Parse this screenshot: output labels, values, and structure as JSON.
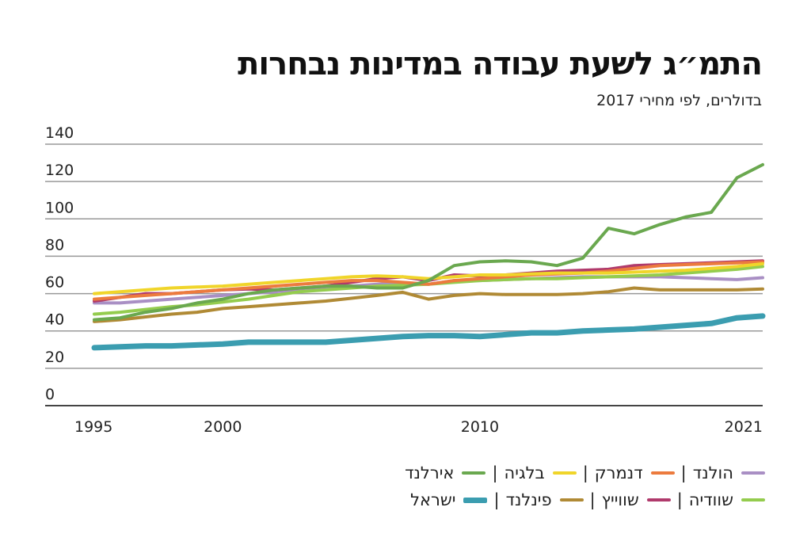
{
  "title": "התמ״ג לשעת עבודה במדינות נבחרות",
  "subtitle": "בדולרים, לפי מחירי 2017",
  "chart_data": {
    "type": "line",
    "title": "התמ״ג לשעת עבודה במדינות נבחרות",
    "subtitle": "בדולרים, לפי מחירי 2017",
    "xlabel": "",
    "ylabel": "",
    "ylim": [
      0,
      140
    ],
    "yticks": [
      0,
      20,
      40,
      60,
      80,
      100,
      120,
      140
    ],
    "xlim": [
      1995,
      2021
    ],
    "xticks": [
      1995,
      2000,
      2010,
      2021
    ],
    "grid": true,
    "legend": "bottom",
    "x": [
      1995,
      1996,
      1997,
      1998,
      1999,
      2000,
      2001,
      2002,
      2003,
      2004,
      2005,
      2006,
      2007,
      2008,
      2009,
      2010,
      2011,
      2012,
      2013,
      2014,
      2015,
      2016,
      2017,
      2018,
      2019,
      2020,
      2021
    ],
    "series": [
      {
        "name": "הולנד",
        "color": "#a98fc4",
        "values": [
          55,
          55,
          56,
          57,
          58,
          59,
          60,
          61,
          62,
          63,
          64,
          65,
          65.5,
          65,
          67,
          67,
          67.5,
          68,
          68.5,
          69,
          69,
          69,
          69,
          68.5,
          68,
          67.5,
          68.5
        ]
      },
      {
        "name": "דנמרק",
        "color": "#ec7b3e",
        "values": [
          57,
          58,
          59,
          60,
          61,
          62,
          63,
          64,
          65,
          66,
          67,
          67,
          66,
          65,
          67,
          68,
          69,
          70,
          70.5,
          71,
          72,
          73.5,
          75,
          75.5,
          76,
          76.5,
          77
        ]
      },
      {
        "name": "בלגיה",
        "color": "#f0d52a",
        "values": [
          60,
          61,
          62,
          63,
          63.5,
          64,
          65,
          66,
          67,
          68,
          69,
          69.5,
          69,
          68,
          69,
          70,
          70,
          70.5,
          71,
          71,
          71,
          71.5,
          72,
          72.5,
          73.5,
          74.5,
          76
        ]
      },
      {
        "name": "אירלנד",
        "color": "#6aa84f",
        "values": [
          46,
          47,
          50,
          52,
          55,
          57,
          60,
          62,
          63,
          64,
          64,
          63,
          63,
          67,
          75,
          77,
          77.5,
          77,
          75,
          79,
          95,
          92,
          97,
          101,
          103.5,
          122,
          129
        ]
      },
      {
        "name": "שוודיה",
        "color": "#94cc4e",
        "values": [
          49,
          50,
          51.5,
          53,
          54,
          55.5,
          57,
          59,
          61,
          62,
          63,
          64,
          64.5,
          65,
          66,
          67,
          67.5,
          68,
          68,
          68.5,
          69,
          69.5,
          70,
          71,
          72,
          73,
          74.5
        ]
      },
      {
        "name": "שווייץ",
        "color": "#b03a6c",
        "values": [
          56,
          58,
          60,
          60,
          61,
          62,
          62.5,
          62,
          63,
          64,
          66,
          68,
          69,
          67,
          70,
          69.5,
          70,
          71,
          72,
          72.5,
          73,
          75,
          75.5,
          76,
          76.5,
          77,
          77.5
        ]
      },
      {
        "name": "פינלנד",
        "color": "#b08a35",
        "values": [
          45,
          46,
          47.5,
          49,
          50,
          52,
          53,
          54,
          55,
          56,
          57.5,
          59,
          60.7,
          57,
          59,
          60,
          59.5,
          59.5,
          59.5,
          60,
          61,
          63,
          62,
          62,
          62,
          62,
          62.5
        ]
      },
      {
        "name": "ישראל",
        "color": "#3b9db0",
        "values": [
          31,
          31.5,
          32,
          32,
          32.5,
          33,
          34,
          34,
          34,
          34,
          35,
          36,
          37,
          37.5,
          37.5,
          37,
          38,
          39,
          39,
          40,
          40.5,
          41,
          42,
          43,
          44,
          47,
          48
        ]
      }
    ]
  }
}
